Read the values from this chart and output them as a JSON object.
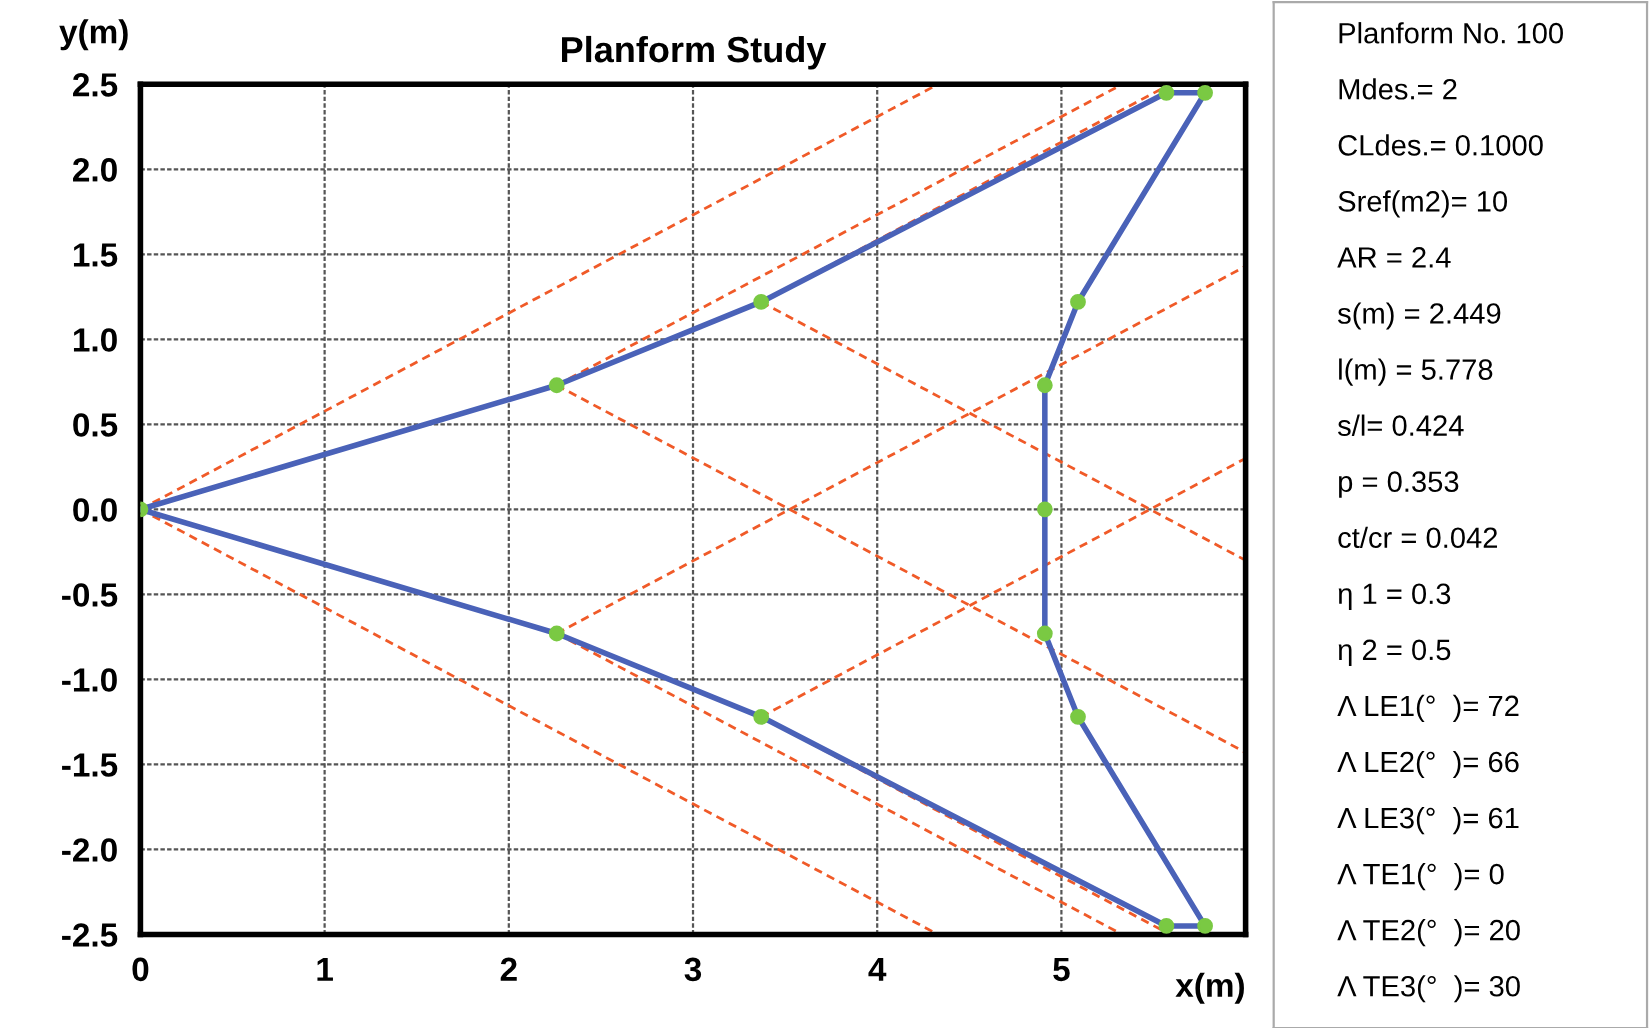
{
  "chart_data": [
    {
      "type": "line",
      "title": "Planform Study",
      "xlabel": "x(m)",
      "ylabel": "y(m)",
      "xlim": [
        0,
        6
      ],
      "ylim": [
        -2.5,
        2.5
      ],
      "xticks": [
        0,
        1,
        2,
        3,
        4,
        5
      ],
      "yticks": [
        -2.5,
        {
          "value": -2,
          "label": "-2.0"
        },
        -1.5,
        {
          "value": -1,
          "label": "-1.0"
        },
        -0.5,
        {
          "value": 0,
          "label": "0.0"
        },
        0.5,
        {
          "value": 1,
          "label": "1.0"
        },
        1.5,
        {
          "value": 2,
          "label": "2.0"
        },
        2.5
      ],
      "grid": true,
      "legend": false,
      "series": [
        {
          "type": "line",
          "color": "#f05a28",
          "line_style": "dashed",
          "marker": "none",
          "x": [
            0,
            4.33
          ],
          "values": [
            0,
            2.5
          ]
        },
        {
          "type": "line",
          "color": "#f05a28",
          "line_style": "dashed",
          "marker": "none",
          "x": [
            0,
            4.33
          ],
          "values": [
            0,
            -2.5
          ]
        },
        {
          "type": "line",
          "color": "#f05a28",
          "line_style": "dashed",
          "marker": "none",
          "x": [
            2.26,
            5.33
          ],
          "values": [
            0.73,
            2.5
          ]
        },
        {
          "type": "line",
          "color": "#f05a28",
          "line_style": "dashed",
          "marker": "none",
          "x": [
            2.26,
            6
          ],
          "values": [
            0.73,
            -1.43
          ]
        },
        {
          "type": "line",
          "color": "#f05a28",
          "line_style": "dashed",
          "marker": "none",
          "x": [
            2.26,
            5.33
          ],
          "values": [
            -0.73,
            -2.5
          ]
        },
        {
          "type": "line",
          "color": "#f05a28",
          "line_style": "dashed",
          "marker": "none",
          "x": [
            2.26,
            6
          ],
          "values": [
            -0.73,
            1.43
          ]
        },
        {
          "type": "line",
          "color": "#f05a28",
          "line_style": "dashed",
          "marker": "none",
          "x": [
            3.37,
            5.59
          ],
          "values": [
            1.22,
            2.5
          ]
        },
        {
          "type": "line",
          "color": "#f05a28",
          "line_style": "dashed",
          "marker": "none",
          "x": [
            3.37,
            6
          ],
          "values": [
            1.22,
            -0.3
          ]
        },
        {
          "type": "line",
          "color": "#f05a28",
          "line_style": "dashed",
          "marker": "none",
          "x": [
            3.37,
            5.59
          ],
          "values": [
            -1.22,
            -2.5
          ]
        },
        {
          "type": "line",
          "color": "#f05a28",
          "line_style": "dashed",
          "marker": "none",
          "x": [
            3.37,
            6
          ],
          "values": [
            -1.22,
            0.3
          ]
        },
        {
          "type": "line",
          "color": "#4a62b8",
          "line_style": "solid",
          "marker": "none",
          "x": [
            0,
            2.26,
            3.37,
            5.57,
            5.78
          ],
          "values": [
            0,
            0.73,
            1.22,
            2.45,
            2.45
          ]
        },
        {
          "type": "line",
          "color": "#4a62b8",
          "line_style": "solid",
          "marker": "none",
          "x": [
            5.78,
            5.09,
            4.91,
            4.91
          ],
          "values": [
            2.45,
            1.22,
            0.73,
            0
          ]
        },
        {
          "type": "line",
          "color": "#4a62b8",
          "line_style": "solid",
          "marker": "none",
          "x": [
            4.91,
            4.91,
            5.09,
            5.78
          ],
          "values": [
            0,
            -0.73,
            -1.22,
            -2.45
          ]
        },
        {
          "type": "line",
          "color": "#4a62b8",
          "line_style": "solid",
          "marker": "none",
          "x": [
            0,
            2.26,
            3.37,
            5.57,
            5.78
          ],
          "values": [
            0,
            -0.73,
            -1.22,
            -2.45,
            -2.45
          ]
        },
        {
          "type": "scatter",
          "color": "#7ac943",
          "marker": "circle",
          "x": [
            0,
            2.26,
            3.37,
            5.57,
            5.78,
            5.09,
            4.91,
            4.91,
            4.91,
            5.09,
            5.78,
            5.57,
            3.37,
            2.26
          ],
          "values": [
            0,
            0.73,
            1.22,
            2.45,
            2.45,
            1.22,
            0.73,
            0,
            -0.73,
            -1.22,
            -2.45,
            -2.45,
            -1.22,
            -0.73
          ]
        }
      ]
    },
    {
      "type": "other",
      "annotations": [
        "Planform No. 100",
        "Mdes.= 2",
        "CLdes.= 0.1000",
        "Sref(m2)= 10",
        "AR = 2.4",
        "s(m) = 2.449",
        "l(m) = 5.778",
        "s/l= 0.424",
        "p = 0.353",
        "ct/cr = 0.042",
        "η 1 = 0.3",
        "η 2 = 0.5",
        "Λ LE1(°  )= 72",
        "Λ LE2(°  )= 66",
        "Λ LE3(°  )= 61",
        "Λ TE1(°  )= 0",
        "Λ TE2(°  )= 20",
        "Λ TE3(°  )= 30"
      ]
    }
  ]
}
